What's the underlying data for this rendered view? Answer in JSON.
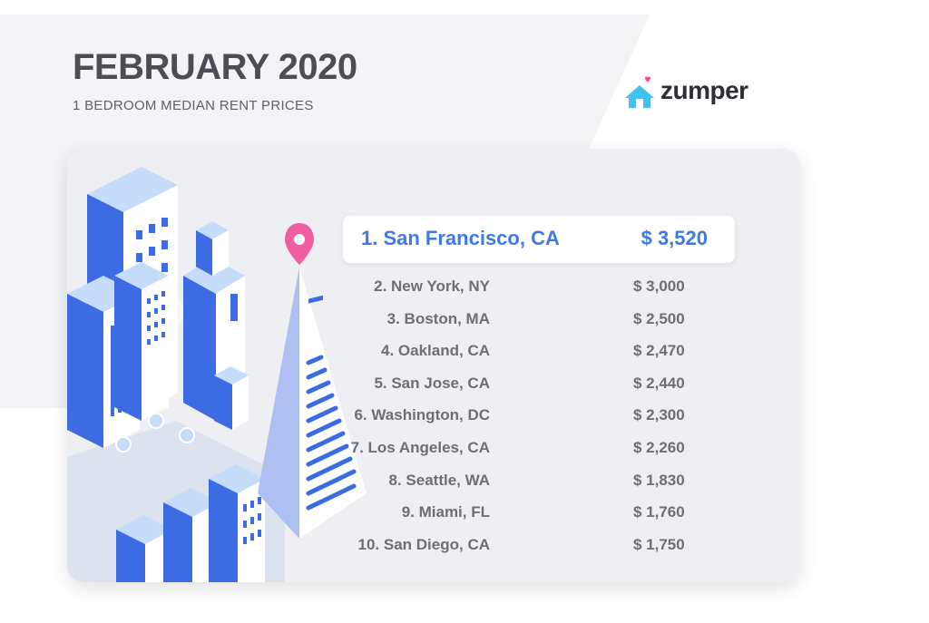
{
  "header": {
    "title": "FEBRUARY 2020",
    "subtitle": "1 BEDROOM MEDIAN RENT PRICES"
  },
  "brand": {
    "name": "zumper",
    "icon": "house-heart-icon",
    "accent_color": "#43c1f0",
    "heart_color": "#ff3f8e"
  },
  "colors": {
    "highlight": "#3d7ae6",
    "text_gray": "#6b6f76",
    "card_bg": "#eeeff2",
    "building_blue": "#3d6be3",
    "building_light": "#c5dcfb",
    "pin": "#f15ea0"
  },
  "top_city": {
    "label": "1. San Francisco, CA",
    "price": "$  3,520"
  },
  "rankings": [
    {
      "label": "2. New York, NY",
      "price": "$ 3,000"
    },
    {
      "label": "3. Boston, MA",
      "price": "$ 2,500"
    },
    {
      "label": "4. Oakland, CA",
      "price": "$ 2,470"
    },
    {
      "label": "5. San Jose, CA",
      "price": "$ 2,440"
    },
    {
      "label": "6. Washington, DC",
      "price": "$ 2,300"
    },
    {
      "label": "7. Los Angeles, CA",
      "price": "$ 2,260"
    },
    {
      "label": "8. Seattle, WA",
      "price": "$ 1,830"
    },
    {
      "label": "9. Miami, FL",
      "price": "$ 1,760"
    },
    {
      "label": "10. San Diego, CA",
      "price": "$ 1,750"
    }
  ]
}
